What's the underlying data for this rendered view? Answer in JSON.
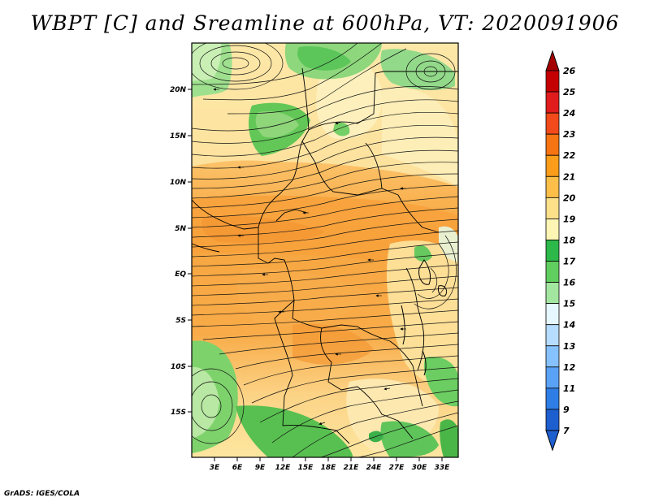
{
  "title": "WBPT [C] and Sreamline at 600hPa, VT: 2020091906",
  "credit": "GrADS: IGES/COLA",
  "map": {
    "lat_labels": [
      "20N",
      "15N",
      "10N",
      "5N",
      "EQ",
      "5S",
      "10S",
      "15S"
    ],
    "lon_labels": [
      "3E",
      "6E",
      "9E",
      "12E",
      "15E",
      "18E",
      "21E",
      "24E",
      "27E",
      "30E",
      "33E"
    ]
  },
  "colorbar": {
    "levels": [
      "26",
      "25",
      "24",
      "23",
      "22",
      "21",
      "20",
      "19",
      "18",
      "17",
      "16",
      "15",
      "14",
      "13",
      "12",
      "11",
      "9",
      "7"
    ],
    "colors": [
      "#a50000",
      "#c40000",
      "#e01c1c",
      "#f24a1a",
      "#f77412",
      "#fb9d1a",
      "#fdbf4a",
      "#fde08a",
      "#fcf5b4",
      "#2db84a",
      "#61cf5f",
      "#a3e6a0",
      "#e6f7ff",
      "#b6dcff",
      "#86c2ff",
      "#5aa2f5",
      "#2f7ee6",
      "#1e5fcf"
    ]
  }
}
